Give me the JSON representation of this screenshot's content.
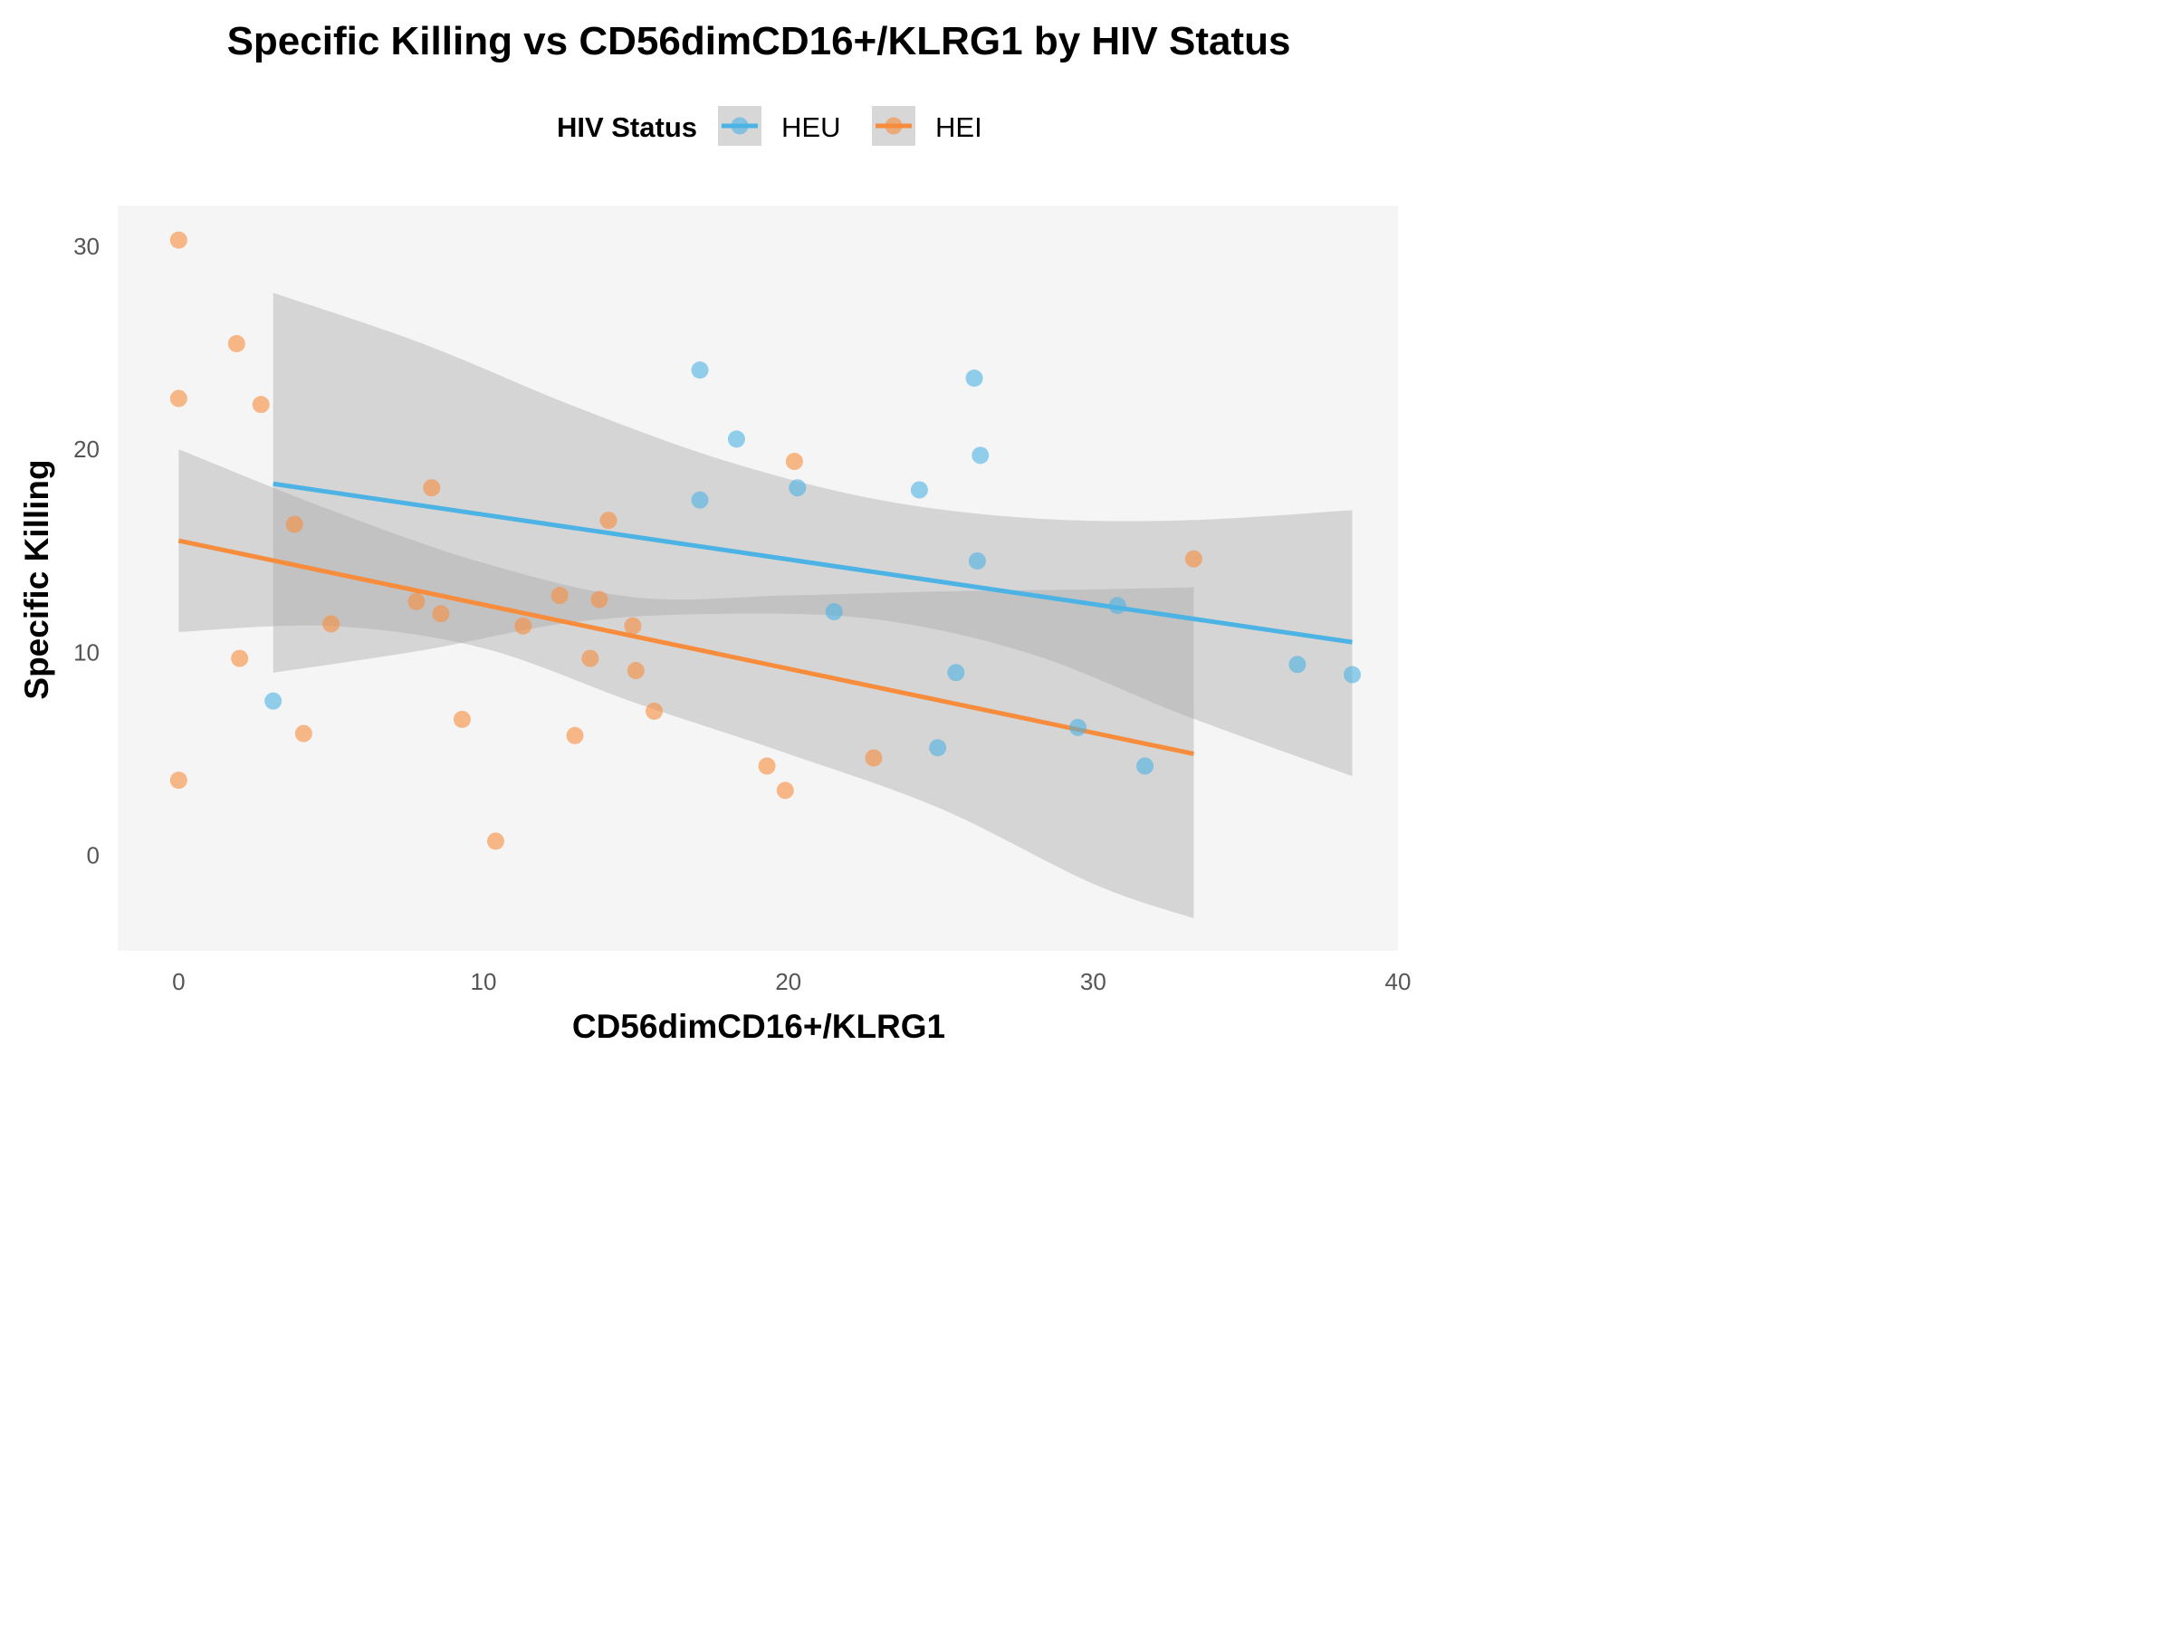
{
  "chart_data": {
    "type": "scatter",
    "title": "Specific Killing vs CD56dimCD16+/KLRG1 by HIV Status",
    "xlabel": "CD56dimCD16+/KLRG1",
    "ylabel": "Specific Killing",
    "xlim": [
      -2,
      40
    ],
    "ylim": [
      -4.7,
      32
    ],
    "xticks": [
      0,
      10,
      20,
      30,
      40
    ],
    "yticks": [
      0,
      10,
      20,
      30
    ],
    "grid": false,
    "legend": {
      "title": "HIV Status",
      "position": "top"
    },
    "series": [
      {
        "name": "HEU",
        "color": "#4db3e4",
        "points": [
          [
            3.1,
            7.6
          ],
          [
            17.1,
            23.9
          ],
          [
            17.1,
            17.5
          ],
          [
            18.3,
            20.5
          ],
          [
            20.3,
            18.1
          ],
          [
            21.5,
            12.0
          ],
          [
            24.3,
            18.0
          ],
          [
            24.9,
            5.3
          ],
          [
            25.5,
            9.0
          ],
          [
            26.1,
            23.5
          ],
          [
            26.2,
            14.5
          ],
          [
            26.3,
            19.7
          ],
          [
            29.5,
            6.3
          ],
          [
            30.8,
            12.3
          ],
          [
            31.7,
            4.4
          ],
          [
            36.7,
            9.4
          ],
          [
            38.5,
            8.9
          ]
        ],
        "fit": [
          [
            3.1,
            18.3
          ],
          [
            38.5,
            10.5
          ]
        ],
        "ci_x": [
          3.1,
          8,
          13,
          18,
          23,
          28,
          33,
          38.5
        ],
        "ci_upper": [
          27.7,
          25.2,
          22.1,
          19.4,
          17.5,
          16.6,
          16.5,
          17.0
        ],
        "ci_lower": [
          9.0,
          10.1,
          11.5,
          11.9,
          11.6,
          9.9,
          6.9,
          3.9
        ]
      },
      {
        "name": "HEI",
        "color": "#f68c3c",
        "points": [
          [
            0.0,
            30.3
          ],
          [
            0.0,
            22.5
          ],
          [
            0.0,
            3.7
          ],
          [
            1.9,
            25.2
          ],
          [
            2.0,
            9.7
          ],
          [
            2.7,
            22.2
          ],
          [
            3.8,
            16.3
          ],
          [
            4.1,
            6.0
          ],
          [
            5.0,
            11.4
          ],
          [
            7.8,
            12.5
          ],
          [
            8.3,
            18.1
          ],
          [
            8.6,
            11.9
          ],
          [
            9.3,
            6.7
          ],
          [
            10.4,
            0.7
          ],
          [
            11.3,
            11.3
          ],
          [
            12.5,
            12.8
          ],
          [
            13.0,
            5.9
          ],
          [
            13.5,
            9.7
          ],
          [
            13.8,
            12.6
          ],
          [
            14.1,
            16.5
          ],
          [
            14.9,
            11.3
          ],
          [
            15.0,
            9.1
          ],
          [
            15.6,
            7.1
          ],
          [
            19.3,
            4.4
          ],
          [
            19.9,
            3.2
          ],
          [
            20.2,
            19.4
          ],
          [
            22.8,
            4.8
          ],
          [
            33.3,
            14.6
          ]
        ],
        "fit": [
          [
            0.0,
            15.5
          ],
          [
            33.3,
            5.0
          ]
        ],
        "ci_x": [
          0,
          5,
          10,
          15,
          20,
          25,
          30,
          33.3
        ],
        "ci_upper": [
          20.0,
          17.0,
          14.4,
          12.7,
          12.8,
          13.0,
          13.1,
          13.2
        ],
        "ci_lower": [
          11.0,
          11.3,
          10.2,
          7.5,
          5.0,
          2.3,
          -1.4,
          -3.1
        ]
      }
    ]
  }
}
